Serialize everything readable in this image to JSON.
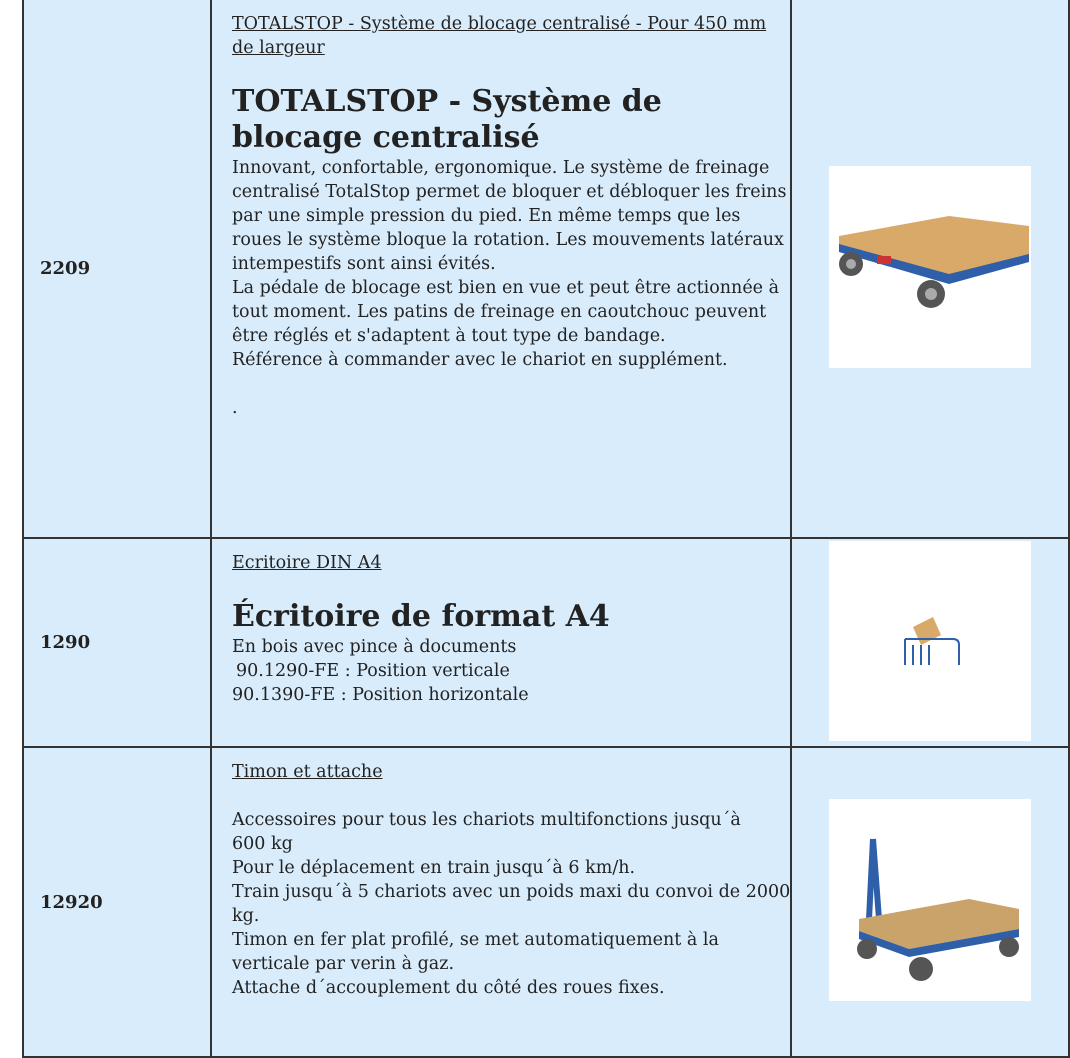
{
  "table": {
    "rows": [
      {
        "ref": "2209",
        "link": "TOTALSTOP - Système de blocage centralisé - Pour 450 mm de largeur",
        "heading": "TOTALSTOP - Système de blocage centralisé",
        "paragraphs": [
          "Innovant, confortable, ergonomique. Le système de freinage centralisé TotalStop permet de bloquer et débloquer les freins par une simple pression du pied. En même temps que les roues le système bloque la rotation. Les mouvements latéraux intempestifs sont ainsi évités.",
          "La pédale de blocage est bien en vue et peut être actionnée à tout moment. Les patins de freinage en caoutchouc peuvent être réglés et s'adaptent à tout type de bandage.",
          "Référence à commander avec le chariot en supplément."
        ],
        "footnote": "."
      },
      {
        "ref": "1290",
        "link": "Ecritoire DIN A4",
        "heading": "Écritoire de format A4",
        "paragraphs": [
          "En bois avec pince à documents",
          "90.1290-FE : Position verticale",
          "90.1390-FE : Position horizontale"
        ]
      },
      {
        "ref": "12920",
        "link": "Timon et attache",
        "paragraphs": [
          "Accessoires pour tous les chariots multifonctions jusqu´à 600 kg",
          "Pour le déplacement en train jusqu´à 6 km/h.",
          "Train jusqu´à 5 chariots avec un poids maxi du convoi de 2000 kg.",
          "Timon en fer plat profilé, se met automatiquement à la verticale par verin à gaz.",
          "Attache d´accouplement du côté des roues fixes."
        ]
      }
    ]
  }
}
